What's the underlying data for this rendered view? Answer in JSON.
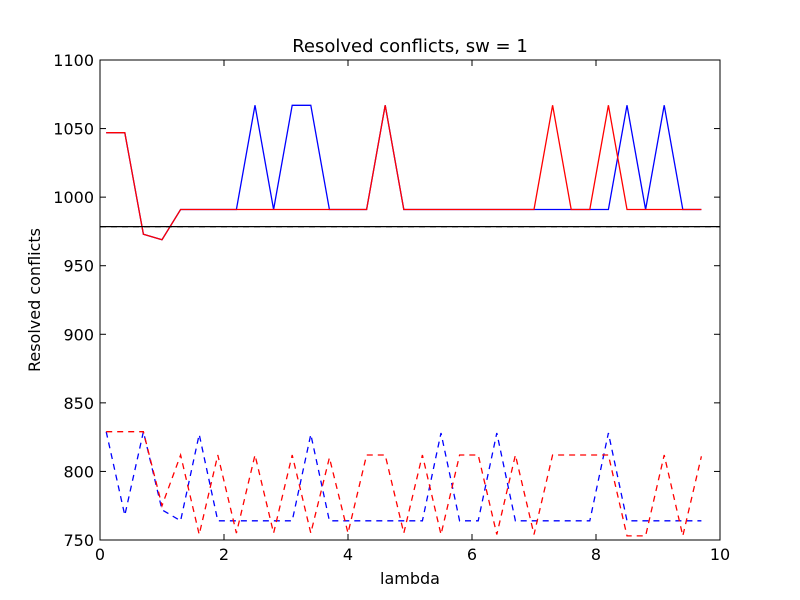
{
  "chart_data": {
    "type": "line",
    "title": "Resolved conflicts, sw = 1",
    "xlabel": "lambda",
    "ylabel": "Resolved conflicts",
    "xlim": [
      0,
      10
    ],
    "ylim": [
      750,
      1100
    ],
    "xticks": [
      "0",
      "2",
      "4",
      "6",
      "8",
      "10"
    ],
    "yticks": [
      "750",
      "800",
      "850",
      "900",
      "950",
      "1000",
      "1050",
      "1100"
    ],
    "grid": false,
    "legend": "none",
    "x": [
      0.1,
      0.4,
      0.7,
      1.0,
      1.3,
      1.6,
      1.9,
      2.2,
      2.5,
      2.8,
      3.1,
      3.4,
      3.7,
      4.0,
      4.3,
      4.6,
      4.9,
      5.2,
      5.5,
      5.8,
      6.1,
      6.4,
      6.7,
      7.0,
      7.3,
      7.6,
      7.9,
      8.2,
      8.5,
      8.8,
      9.1,
      9.4,
      9.7
    ],
    "series": [
      {
        "color": "#0000ff",
        "style": "solid",
        "values": [
          1047,
          1047,
          973,
          969,
          991,
          991,
          991,
          991,
          1067,
          991,
          1067,
          1067,
          991,
          991,
          991,
          1067,
          991,
          991,
          991,
          991,
          991,
          991,
          991,
          991,
          991,
          991,
          991,
          991,
          1067,
          991,
          1067,
          991,
          991
        ]
      },
      {
        "color": "#ff0000",
        "style": "solid",
        "values": [
          1047,
          1047,
          973,
          969,
          991,
          991,
          991,
          991,
          991,
          991,
          991,
          991,
          991,
          991,
          991,
          1067,
          991,
          991,
          991,
          991,
          991,
          991,
          991,
          991,
          1067,
          991,
          991,
          1067,
          991,
          991,
          991,
          991,
          991
        ]
      },
      {
        "color": "#0000ff",
        "style": "dashed",
        "values": [
          829,
          768,
          829,
          772,
          764,
          827,
          764,
          764,
          764,
          764,
          764,
          827,
          764,
          764,
          764,
          764,
          764,
          764,
          828,
          764,
          764,
          828,
          764,
          764,
          764,
          764,
          764,
          828,
          764,
          764,
          764,
          764,
          764
        ]
      },
      {
        "color": "#ff0000",
        "style": "dashed",
        "values": [
          829,
          829,
          829,
          775,
          812,
          754,
          812,
          755,
          812,
          755,
          812,
          755,
          810,
          755,
          812,
          812,
          755,
          812,
          754,
          812,
          812,
          754,
          812,
          754,
          812,
          812,
          812,
          812,
          753,
          753,
          812,
          753,
          811
        ]
      },
      {
        "color": "#000000",
        "style": "solid",
        "constant": 978.5
      },
      {
        "color": "#000000",
        "style": "dashed",
        "constant": 978.5
      }
    ]
  }
}
